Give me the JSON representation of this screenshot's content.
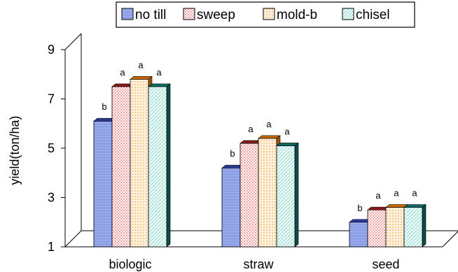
{
  "chart_data": {
    "type": "bar",
    "title": "",
    "xlabel": "",
    "ylabel": "yield(ton/ha)",
    "categories": [
      "biologic",
      "straw",
      "seed"
    ],
    "ylim": [
      1,
      9
    ],
    "yticks": [
      "1",
      "3",
      "5",
      "7",
      "9"
    ],
    "grid": false,
    "legend_position": "top",
    "series": [
      {
        "name": "no till",
        "values": [
          6.1,
          4.2,
          2.0
        ],
        "labels": [
          "b",
          "b",
          "b"
        ],
        "color": "#8ea2e8",
        "top": "#2a3a9a",
        "side": "#1a2a80"
      },
      {
        "name": "sweep",
        "values": [
          7.5,
          5.2,
          2.5
        ],
        "labels": [
          "a",
          "a",
          "a"
        ],
        "color": "#f6caca",
        "top": "#8a1a1a",
        "side": "#7a1010"
      },
      {
        "name": "mold-b",
        "values": [
          7.8,
          5.4,
          2.6
        ],
        "labels": [
          "a",
          "a",
          "a"
        ],
        "color": "#fde2b8",
        "top": "#c86a00",
        "side": "#a85200"
      },
      {
        "name": "chisel",
        "values": [
          7.5,
          5.1,
          2.6
        ],
        "labels": [
          "a",
          "a",
          "a"
        ],
        "color": "#d6f1ee",
        "top": "#0b6b63",
        "side": "#064f49"
      }
    ]
  }
}
